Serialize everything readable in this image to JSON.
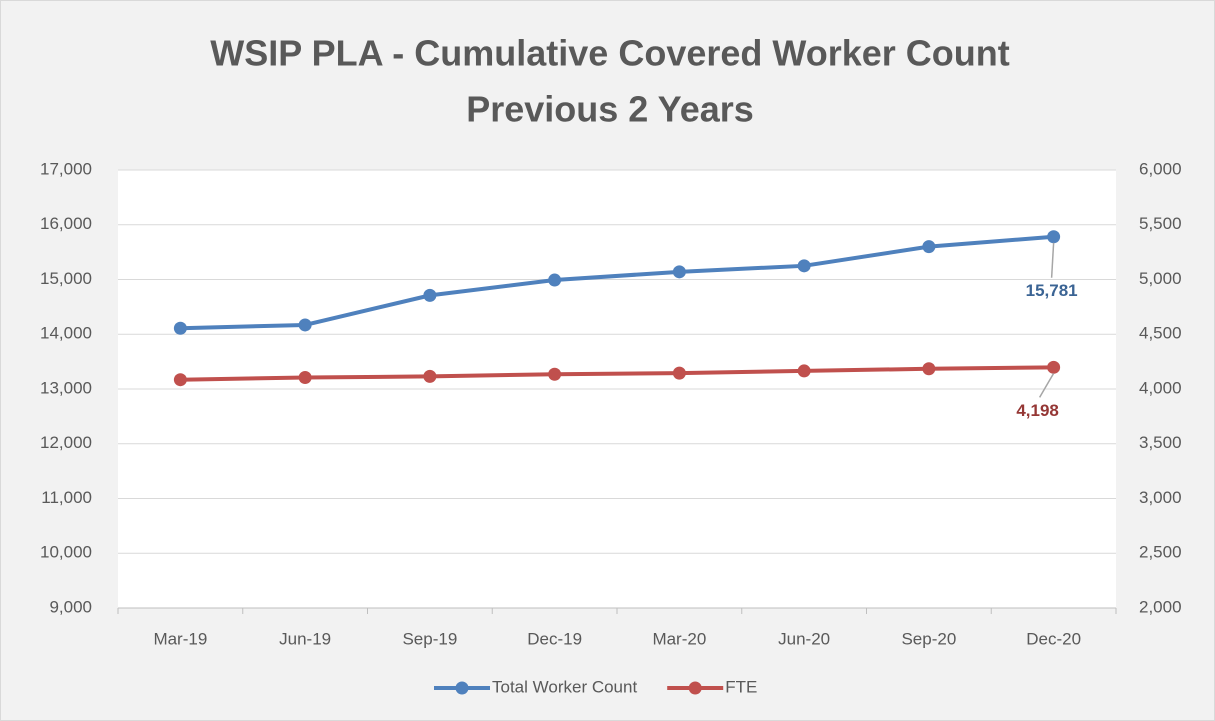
{
  "chart_data": {
    "type": "line",
    "title": [
      "WSIP PLA - Cumulative Covered Worker Count",
      "Previous 2 Years"
    ],
    "categories": [
      "Mar-19",
      "Jun-19",
      "Sep-19",
      "Dec-19",
      "Mar-20",
      "Jun-20",
      "Sep-20",
      "Dec-20"
    ],
    "series": [
      {
        "name": "Total Worker Count",
        "color": "#4f81bd",
        "label_color": "#3b6494",
        "values": [
          14110,
          14170,
          14710,
          14990,
          15140,
          15250,
          15600,
          15781
        ],
        "value_labels": [
          null,
          null,
          null,
          null,
          null,
          null,
          null,
          "15,781"
        ]
      },
      {
        "name": "FTE",
        "color": "#c0504d",
        "label_color": "#953735",
        "axis": "y2",
        "values": [
          4085,
          4105,
          4115,
          4135,
          4145,
          4165,
          4185,
          4198
        ],
        "value_labels": [
          null,
          null,
          null,
          null,
          null,
          null,
          null,
          "4,198"
        ]
      }
    ],
    "ylim": [
      9000,
      17000
    ],
    "yticks": [
      {
        "value": 9000,
        "label": "9,000"
      },
      {
        "value": 10000,
        "label": "10,000"
      },
      {
        "value": 11000,
        "label": "11,000"
      },
      {
        "value": 12000,
        "label": "12,000"
      },
      {
        "value": 13000,
        "label": "13,000"
      },
      {
        "value": 14000,
        "label": "14,000"
      },
      {
        "value": 15000,
        "label": "15,000"
      },
      {
        "value": 16000,
        "label": "16,000"
      },
      {
        "value": 17000,
        "label": "17,000"
      }
    ],
    "y2lim": [
      2000,
      6000
    ],
    "y2ticks": [
      {
        "value": 2000,
        "label": "2,000"
      },
      {
        "value": 2500,
        "label": "2,500"
      },
      {
        "value": 3000,
        "label": "3,000"
      },
      {
        "value": 3500,
        "label": "3,500"
      },
      {
        "value": 4000,
        "label": "4,000"
      },
      {
        "value": 4500,
        "label": "4,500"
      },
      {
        "value": 5000,
        "label": "5,000"
      },
      {
        "value": 5500,
        "label": "5,500"
      },
      {
        "value": 6000,
        "label": "6,000"
      }
    ],
    "grid": true,
    "legend": "bottom"
  }
}
